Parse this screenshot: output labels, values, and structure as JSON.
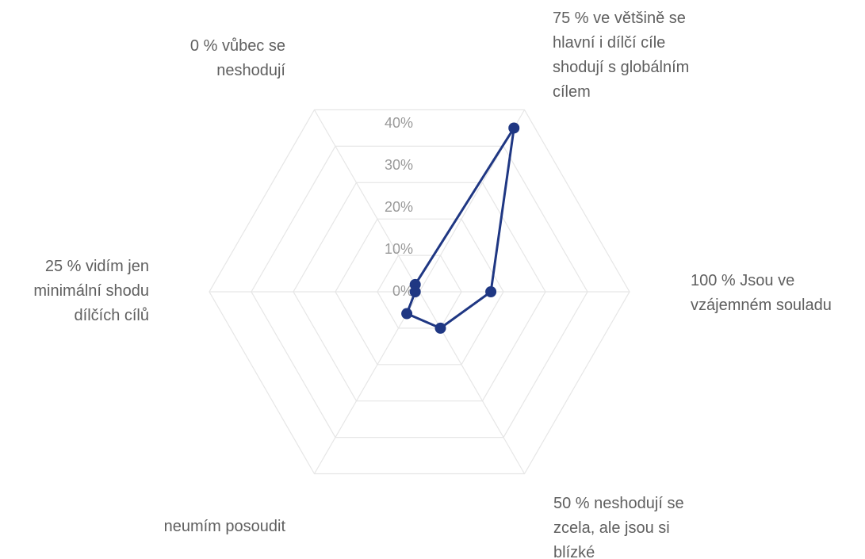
{
  "chart_data": {
    "type": "radar",
    "categories": [
      "0 % vůbec se neshodují",
      "75 % ve většině se hlavní i dílčí cíle shodují s globálním cílem",
      "100 % Jsou ve vzájemném souladu",
      "50 % neshodují se zcela, ale jsou si blízké",
      "neumím posoudit",
      "25 % vidím jen minimální shodu dílčích cílů"
    ],
    "axis_labels": [
      [
        "0 % vůbec se",
        "neshodují"
      ],
      [
        "75 % ve většině se",
        "hlavní i dílčí cíle",
        "shodují s globálním",
        "cílem"
      ],
      [
        "100 % Jsou ve",
        "vzájemném souladu"
      ],
      [
        "50 % neshodují se",
        "zcela, ale jsou si",
        "blízké"
      ],
      [
        "neumím posoudit"
      ],
      [
        "25 % vidím jen",
        "minimální shodu",
        "dílčích cílů"
      ]
    ],
    "series": [
      {
        "values": [
          2,
          45,
          17,
          10,
          6,
          1
        ],
        "color": "#1f3783"
      }
    ],
    "radial_ticks": [
      "0%",
      "10%",
      "20%",
      "30%",
      "40%"
    ],
    "r_range": [
      0,
      50
    ],
    "grid": true,
    "legend": "none"
  }
}
